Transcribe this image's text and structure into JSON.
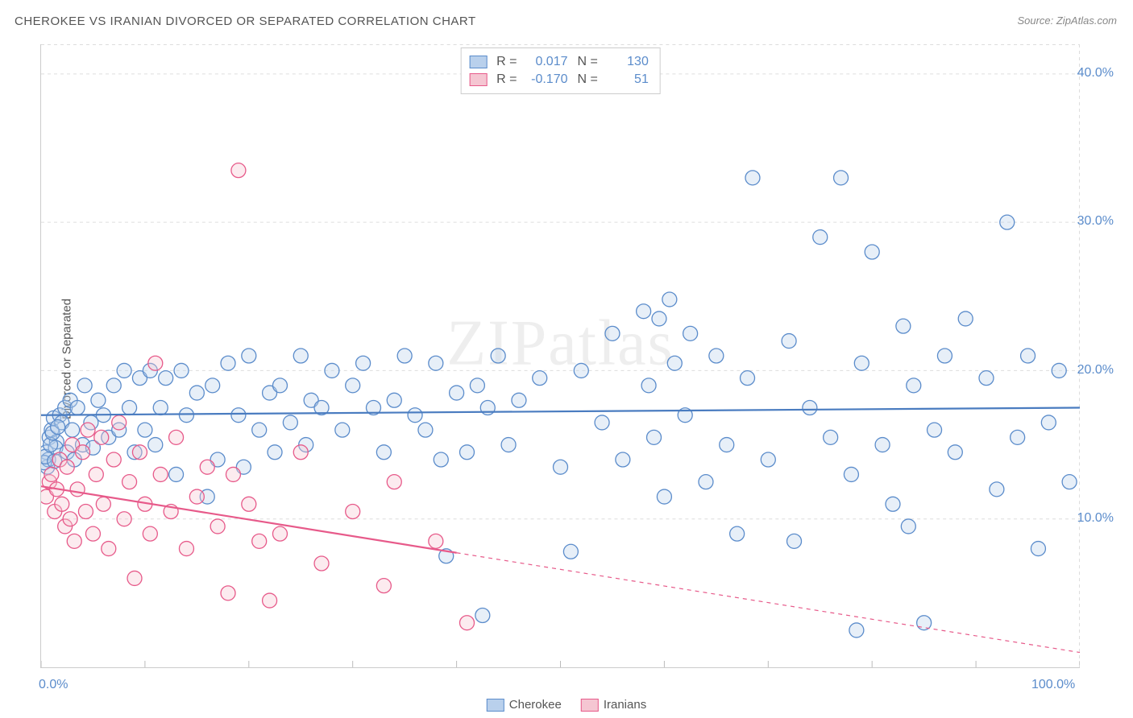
{
  "title": "CHEROKEE VS IRANIAN DIVORCED OR SEPARATED CORRELATION CHART",
  "source": "Source: ZipAtlas.com",
  "watermark": "ZIPatlas",
  "y_axis_title": "Divorced or Separated",
  "chart": {
    "type": "scatter",
    "xlim": [
      0,
      100
    ],
    "ylim": [
      0,
      42
    ],
    "x_ticks": [
      0,
      10,
      20,
      30,
      40,
      50,
      60,
      70,
      80,
      90,
      100
    ],
    "x_tick_labels_shown": {
      "0": "0.0%",
      "100": "100.0%"
    },
    "y_ticks": [
      10,
      20,
      30,
      40
    ],
    "y_tick_labels": {
      "10": "10.0%",
      "20": "20.0%",
      "30": "30.0%",
      "40": "40.0%"
    },
    "grid_color": "#dddddd",
    "grid_dash": "4,4",
    "background_color": "#ffffff",
    "marker_radius": 9,
    "marker_stroke_width": 1.3,
    "marker_fill_opacity": 0.35,
    "trend_line_width": 2.2
  },
  "stats_legend": [
    {
      "swatch_fill": "#b9d0ec",
      "swatch_stroke": "#5b8ccb",
      "r_label": "R =",
      "r_value": "0.017",
      "n_label": "N =",
      "n_value": "130"
    },
    {
      "swatch_fill": "#f5c6d2",
      "swatch_stroke": "#e75a8a",
      "r_label": "R =",
      "r_value": "-0.170",
      "n_label": "N =",
      "n_value": "51"
    }
  ],
  "bottom_legend": [
    {
      "swatch_fill": "#b9d0ec",
      "swatch_stroke": "#5b8ccb",
      "label": "Cherokee"
    },
    {
      "swatch_fill": "#f5c6d2",
      "swatch_stroke": "#e75a8a",
      "label": "Iranians"
    }
  ],
  "series": [
    {
      "name": "Cherokee",
      "color_fill": "#b9d0ec",
      "color_stroke": "#5b8ccb",
      "trend_color": "#4a7cc0",
      "trend": {
        "y_at_x0": 17.0,
        "y_at_x100": 17.5
      },
      "points": [
        [
          0.5,
          14.5
        ],
        [
          0.8,
          15.5
        ],
        [
          1.0,
          16.0
        ],
        [
          1.2,
          16.8
        ],
        [
          1.5,
          15.2
        ],
        [
          1.8,
          17.0
        ],
        [
          0.6,
          13.5
        ],
        [
          0.7,
          14.0
        ],
        [
          1.4,
          14.8
        ],
        [
          2.0,
          16.5
        ],
        [
          2.3,
          17.5
        ],
        [
          2.5,
          14.5
        ],
        [
          2.8,
          18.0
        ],
        [
          3.0,
          16.0
        ],
        [
          3.2,
          14.0
        ],
        [
          3.5,
          17.5
        ],
        [
          4.0,
          15.0
        ],
        [
          4.2,
          19.0
        ],
        [
          4.8,
          16.5
        ],
        [
          5.0,
          14.8
        ],
        [
          5.5,
          18.0
        ],
        [
          6.0,
          17.0
        ],
        [
          6.5,
          15.5
        ],
        [
          7.0,
          19.0
        ],
        [
          7.5,
          16.0
        ],
        [
          8.0,
          20.0
        ],
        [
          8.5,
          17.5
        ],
        [
          9.0,
          14.5
        ],
        [
          9.5,
          19.5
        ],
        [
          10.0,
          16.0
        ],
        [
          10.5,
          20.0
        ],
        [
          11.0,
          15.0
        ],
        [
          11.5,
          17.5
        ],
        [
          12.0,
          19.5
        ],
        [
          13.0,
          13.0
        ],
        [
          13.5,
          20.0
        ],
        [
          14.0,
          17.0
        ],
        [
          15.0,
          18.5
        ],
        [
          16.0,
          11.5
        ],
        [
          16.5,
          19.0
        ],
        [
          17.0,
          14.0
        ],
        [
          18.0,
          20.5
        ],
        [
          19.0,
          17.0
        ],
        [
          19.5,
          13.5
        ],
        [
          20.0,
          21.0
        ],
        [
          21.0,
          16.0
        ],
        [
          22.0,
          18.5
        ],
        [
          22.5,
          14.5
        ],
        [
          23.0,
          19.0
        ],
        [
          24.0,
          16.5
        ],
        [
          25.0,
          21.0
        ],
        [
          25.5,
          15.0
        ],
        [
          26.0,
          18.0
        ],
        [
          27.0,
          17.5
        ],
        [
          28.0,
          20.0
        ],
        [
          29.0,
          16.0
        ],
        [
          30.0,
          19.0
        ],
        [
          31.0,
          20.5
        ],
        [
          32.0,
          17.5
        ],
        [
          33.0,
          14.5
        ],
        [
          34.0,
          18.0
        ],
        [
          35.0,
          21.0
        ],
        [
          36.0,
          17.0
        ],
        [
          37.0,
          16.0
        ],
        [
          38.0,
          20.5
        ],
        [
          38.5,
          14.0
        ],
        [
          39.0,
          7.5
        ],
        [
          40.0,
          18.5
        ],
        [
          41.0,
          14.5
        ],
        [
          42.0,
          19.0
        ],
        [
          42.5,
          3.5
        ],
        [
          43.0,
          17.5
        ],
        [
          44.0,
          21.0
        ],
        [
          45.0,
          15.0
        ],
        [
          46.0,
          18.0
        ],
        [
          48.0,
          19.5
        ],
        [
          50.0,
          13.5
        ],
        [
          51.0,
          7.8
        ],
        [
          52.0,
          20.0
        ],
        [
          54.0,
          16.5
        ],
        [
          55.0,
          22.5
        ],
        [
          56.0,
          14.0
        ],
        [
          58.0,
          24.0
        ],
        [
          58.5,
          19.0
        ],
        [
          59.0,
          15.5
        ],
        [
          60.0,
          11.5
        ],
        [
          61.0,
          20.5
        ],
        [
          62.0,
          17.0
        ],
        [
          62.5,
          22.5
        ],
        [
          64.0,
          12.5
        ],
        [
          65.0,
          21.0
        ],
        [
          66.0,
          15.0
        ],
        [
          67.0,
          9.0
        ],
        [
          68.0,
          19.5
        ],
        [
          68.5,
          33.0
        ],
        [
          70.0,
          14.0
        ],
        [
          72.0,
          22.0
        ],
        [
          72.5,
          8.5
        ],
        [
          74.0,
          17.5
        ],
        [
          75.0,
          29.0
        ],
        [
          76.0,
          15.5
        ],
        [
          77.0,
          33.0
        ],
        [
          78.0,
          13.0
        ],
        [
          78.5,
          2.5
        ],
        [
          79.0,
          20.5
        ],
        [
          80.0,
          28.0
        ],
        [
          81.0,
          15.0
        ],
        [
          82.0,
          11.0
        ],
        [
          83.0,
          23.0
        ],
        [
          83.5,
          9.5
        ],
        [
          84.0,
          19.0
        ],
        [
          85.0,
          3.0
        ],
        [
          86.0,
          16.0
        ],
        [
          87.0,
          21.0
        ],
        [
          88.0,
          14.5
        ],
        [
          89.0,
          23.5
        ],
        [
          91.0,
          19.5
        ],
        [
          92.0,
          12.0
        ],
        [
          93.0,
          30.0
        ],
        [
          94.0,
          15.5
        ],
        [
          95.0,
          21.0
        ],
        [
          96.0,
          8.0
        ],
        [
          97.0,
          16.5
        ],
        [
          98.0,
          20.0
        ],
        [
          99.0,
          12.5
        ],
        [
          59.5,
          23.5
        ],
        [
          60.5,
          24.8
        ],
        [
          0.3,
          13.8
        ],
        [
          0.4,
          14.2
        ],
        [
          0.9,
          15.0
        ],
        [
          1.1,
          15.8
        ],
        [
          1.3,
          13.9
        ],
        [
          1.6,
          16.2
        ]
      ]
    },
    {
      "name": "Iranians",
      "color_fill": "#f5c6d2",
      "color_stroke": "#e75a8a",
      "trend_color": "#e75a8a",
      "trend": {
        "y_at_x0": 12.2,
        "y_at_x100": 1.0
      },
      "trend_solid_until_x": 40,
      "points": [
        [
          0.5,
          11.5
        ],
        [
          0.8,
          12.5
        ],
        [
          1.0,
          13.0
        ],
        [
          1.3,
          10.5
        ],
        [
          1.5,
          12.0
        ],
        [
          1.8,
          14.0
        ],
        [
          2.0,
          11.0
        ],
        [
          2.3,
          9.5
        ],
        [
          2.5,
          13.5
        ],
        [
          2.8,
          10.0
        ],
        [
          3.0,
          15.0
        ],
        [
          3.2,
          8.5
        ],
        [
          3.5,
          12.0
        ],
        [
          4.0,
          14.5
        ],
        [
          4.3,
          10.5
        ],
        [
          4.5,
          16.0
        ],
        [
          5.0,
          9.0
        ],
        [
          5.3,
          13.0
        ],
        [
          5.8,
          15.5
        ],
        [
          6.0,
          11.0
        ],
        [
          6.5,
          8.0
        ],
        [
          7.0,
          14.0
        ],
        [
          7.5,
          16.5
        ],
        [
          8.0,
          10.0
        ],
        [
          8.5,
          12.5
        ],
        [
          9.0,
          6.0
        ],
        [
          9.5,
          14.5
        ],
        [
          10.0,
          11.0
        ],
        [
          10.5,
          9.0
        ],
        [
          11.0,
          20.5
        ],
        [
          11.5,
          13.0
        ],
        [
          12.5,
          10.5
        ],
        [
          13.0,
          15.5
        ],
        [
          14.0,
          8.0
        ],
        [
          15.0,
          11.5
        ],
        [
          16.0,
          13.5
        ],
        [
          17.0,
          9.5
        ],
        [
          18.0,
          5.0
        ],
        [
          18.5,
          13.0
        ],
        [
          19.0,
          33.5
        ],
        [
          20.0,
          11.0
        ],
        [
          21.0,
          8.5
        ],
        [
          22.0,
          4.5
        ],
        [
          23.0,
          9.0
        ],
        [
          25.0,
          14.5
        ],
        [
          27.0,
          7.0
        ],
        [
          30.0,
          10.5
        ],
        [
          33.0,
          5.5
        ],
        [
          34.0,
          12.5
        ],
        [
          38.0,
          8.5
        ],
        [
          41.0,
          3.0
        ]
      ]
    }
  ]
}
